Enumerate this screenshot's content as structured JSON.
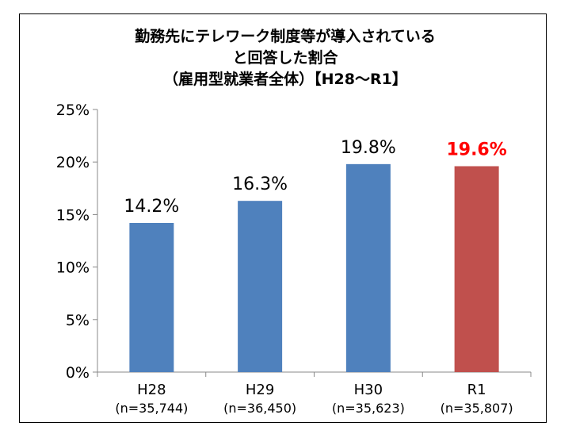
{
  "chart_data": {
    "type": "bar",
    "title_lines": [
      "勤務先にテレワーク制度等が導入されている",
      "と回答した割合",
      "（雇用型就業者全体）【H28～R1】"
    ],
    "categories": [
      "H28",
      "H29",
      "H30",
      "R1"
    ],
    "sample_sizes": [
      "(n=35,744)",
      "(n=36,450)",
      "(n=35,623)",
      "(n=35,807)"
    ],
    "values": [
      14.2,
      16.3,
      19.8,
      19.6
    ],
    "data_labels": [
      "14.2%",
      "16.3%",
      "19.8%",
      "19.6%"
    ],
    "bar_colors": [
      "#4f81bd",
      "#4f81bd",
      "#4f81bd",
      "#c0504d"
    ],
    "data_label_colors": [
      "#000000",
      "#000000",
      "#000000",
      "#ff0000"
    ],
    "data_label_bold": [
      false,
      false,
      false,
      true
    ],
    "ylim": [
      0,
      25
    ],
    "yticks": [
      0,
      5,
      10,
      15,
      20,
      25
    ],
    "ytick_labels": [
      "0%",
      "5%",
      "10%",
      "15%",
      "20%",
      "25%"
    ],
    "grid": false,
    "legend": "none",
    "xlabel": "",
    "ylabel": ""
  }
}
